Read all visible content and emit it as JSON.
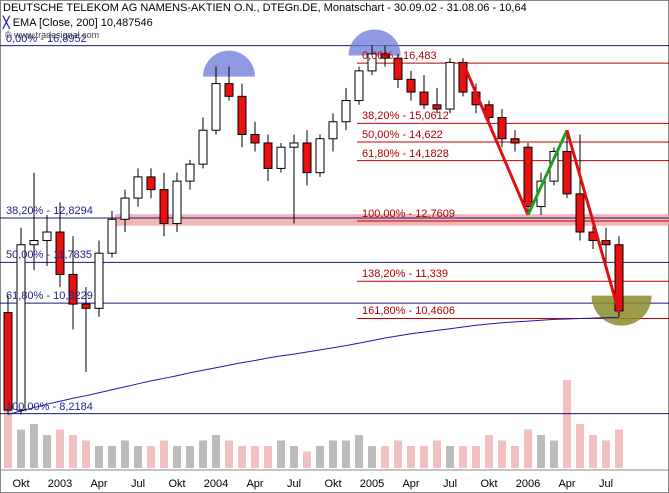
{
  "header": {
    "title": "DEUTSCHE TELEKOM AG NAMENS-AKTIEN O.N., DTEGn.DE, Monatschart - 30.09.02 - 31.08.06 - 10,64",
    "ema_text": "EMA [Close, 200] 10,487546",
    "watermark": "© www.tradesignal.com"
  },
  "left_levels": [
    {
      "text": "0,00% - 16,8952",
      "value": 16.8952
    },
    {
      "text": "38,20% - 12,8294",
      "value": 12.8294
    },
    {
      "text": "50,00% - 11,7835",
      "value": 11.7835
    },
    {
      "text": "61,80% - 10,8229",
      "value": 10.8229
    },
    {
      "text": "100,00% - 8,2184",
      "value": 8.2184
    }
  ],
  "right_levels": [
    {
      "text": "0,00% - 16,483",
      "value": 16.483
    },
    {
      "text": "38,20% - 15,0612",
      "value": 15.0612
    },
    {
      "text": "50,00% - 14,622",
      "value": 14.622
    },
    {
      "text": "61,80% - 14,1828",
      "value": 14.1828
    },
    {
      "text": "100,00% - 12,7609",
      "value": 12.7609
    },
    {
      "text": "138,20% - 11,339",
      "value": 11.339
    },
    {
      "text": "161,80% - 10,4606",
      "value": 10.4606
    }
  ],
  "x_labels": [
    {
      "text": "Okt",
      "index": 1
    },
    {
      "text": "2003",
      "index": 4
    },
    {
      "text": "Apr",
      "index": 7
    },
    {
      "text": "Jul",
      "index": 10
    },
    {
      "text": "Okt",
      "index": 13
    },
    {
      "text": "2004",
      "index": 16
    },
    {
      "text": "Apr",
      "index": 19
    },
    {
      "text": "Jul",
      "index": 22
    },
    {
      "text": "Okt",
      "index": 25
    },
    {
      "text": "2005",
      "index": 28
    },
    {
      "text": "Apr",
      "index": 31
    },
    {
      "text": "Jul",
      "index": 34
    },
    {
      "text": "Okt",
      "index": 37
    },
    {
      "text": "2006",
      "index": 40
    },
    {
      "text": "Apr",
      "index": 43
    },
    {
      "text": "Jul",
      "index": 46
    }
  ],
  "colors": {
    "up": "#ffffff",
    "down": "#e81010",
    "candle_outline": "#000000",
    "ema": "#1a1ab0",
    "fib_left": "#1a1a80",
    "fib_right": "#c00000",
    "support_band": "#f0a8a8",
    "vol_up": "#bcbcbc",
    "vol_down": "#f2c0c0",
    "trend_red": "#e01010",
    "trend_green": "#20a020",
    "top_marker": "#6a78d8",
    "bottom_marker": "#8a8c2a"
  },
  "chart_data": {
    "type": "candlestick",
    "title": "DEUTSCHE TELEKOM AG NAMENS-AKTIEN O.N., DTEGn.DE, Monatschart - 30.09.02 - 31.08.06 - 10,64",
    "xlabel": "",
    "ylabel": "",
    "ylim": [
      7.1,
      17.5
    ],
    "grid": false,
    "candles": [
      {
        "date": "2002-09",
        "open": 10.6,
        "high": 11.0,
        "low": 8.2,
        "close": 8.3
      },
      {
        "date": "2002-10",
        "open": 8.3,
        "high": 12.6,
        "low": 8.2,
        "close": 12.2
      },
      {
        "date": "2002-11",
        "open": 12.2,
        "high": 13.9,
        "low": 11.6,
        "close": 12.3
      },
      {
        "date": "2002-12",
        "open": 12.3,
        "high": 12.9,
        "low": 11.7,
        "close": 12.5
      },
      {
        "date": "2003-01",
        "open": 12.5,
        "high": 13.2,
        "low": 11.2,
        "close": 11.5
      },
      {
        "date": "2003-02",
        "open": 11.5,
        "high": 12.4,
        "low": 10.2,
        "close": 10.8
      },
      {
        "date": "2003-03",
        "open": 10.8,
        "high": 11.2,
        "low": 9.2,
        "close": 10.7
      },
      {
        "date": "2003-04",
        "open": 10.7,
        "high": 12.3,
        "low": 10.5,
        "close": 12.0
      },
      {
        "date": "2003-05",
        "open": 12.0,
        "high": 13.0,
        "low": 11.9,
        "close": 12.8
      },
      {
        "date": "2003-06",
        "open": 12.8,
        "high": 13.5,
        "low": 12.5,
        "close": 13.3
      },
      {
        "date": "2003-07",
        "open": 13.3,
        "high": 14.0,
        "low": 13.1,
        "close": 13.8
      },
      {
        "date": "2003-08",
        "open": 13.8,
        "high": 14.0,
        "low": 13.3,
        "close": 13.5
      },
      {
        "date": "2003-09",
        "open": 13.5,
        "high": 13.9,
        "low": 12.4,
        "close": 12.7
      },
      {
        "date": "2003-10",
        "open": 12.7,
        "high": 13.9,
        "low": 12.5,
        "close": 13.7
      },
      {
        "date": "2003-11",
        "open": 13.7,
        "high": 14.2,
        "low": 13.5,
        "close": 14.1
      },
      {
        "date": "2003-12",
        "open": 14.1,
        "high": 15.2,
        "low": 14.0,
        "close": 14.9
      },
      {
        "date": "2004-01",
        "open": 14.9,
        "high": 16.4,
        "low": 14.8,
        "close": 16.0
      },
      {
        "date": "2004-02",
        "open": 16.0,
        "high": 16.4,
        "low": 15.6,
        "close": 15.7
      },
      {
        "date": "2004-03",
        "open": 15.7,
        "high": 16.0,
        "low": 14.5,
        "close": 14.8
      },
      {
        "date": "2004-04",
        "open": 14.8,
        "high": 15.1,
        "low": 14.4,
        "close": 14.6
      },
      {
        "date": "2004-05",
        "open": 14.6,
        "high": 14.8,
        "low": 13.7,
        "close": 14.0
      },
      {
        "date": "2004-06",
        "open": 14.0,
        "high": 14.6,
        "low": 13.9,
        "close": 14.5
      },
      {
        "date": "2004-07",
        "open": 14.5,
        "high": 14.8,
        "low": 12.7,
        "close": 14.6
      },
      {
        "date": "2004-08",
        "open": 14.6,
        "high": 14.9,
        "low": 13.6,
        "close": 13.9
      },
      {
        "date": "2004-09",
        "open": 13.9,
        "high": 14.8,
        "low": 13.8,
        "close": 14.7
      },
      {
        "date": "2004-10",
        "open": 14.7,
        "high": 15.3,
        "low": 14.4,
        "close": 15.1
      },
      {
        "date": "2004-11",
        "open": 15.1,
        "high": 15.9,
        "low": 14.9,
        "close": 15.6
      },
      {
        "date": "2004-12",
        "open": 15.6,
        "high": 16.4,
        "low": 15.5,
        "close": 16.3
      },
      {
        "date": "2005-01",
        "open": 16.3,
        "high": 16.9,
        "low": 16.2,
        "close": 16.7
      },
      {
        "date": "2005-02",
        "open": 16.7,
        "high": 16.9,
        "low": 16.4,
        "close": 16.6
      },
      {
        "date": "2005-03",
        "open": 16.6,
        "high": 16.7,
        "low": 15.9,
        "close": 16.1
      },
      {
        "date": "2005-04",
        "open": 16.1,
        "high": 16.3,
        "low": 15.6,
        "close": 15.8
      },
      {
        "date": "2005-05",
        "open": 15.8,
        "high": 16.2,
        "low": 15.4,
        "close": 15.5
      },
      {
        "date": "2005-06",
        "open": 15.5,
        "high": 15.9,
        "low": 15.3,
        "close": 15.4
      },
      {
        "date": "2005-07",
        "open": 15.4,
        "high": 16.6,
        "low": 15.3,
        "close": 16.5
      },
      {
        "date": "2005-08",
        "open": 16.5,
        "high": 16.6,
        "low": 15.7,
        "close": 15.8
      },
      {
        "date": "2005-09",
        "open": 15.8,
        "high": 16.0,
        "low": 15.3,
        "close": 15.5
      },
      {
        "date": "2005-10",
        "open": 15.5,
        "high": 15.6,
        "low": 15.0,
        "close": 15.2
      },
      {
        "date": "2005-11",
        "open": 15.2,
        "high": 15.4,
        "low": 14.5,
        "close": 14.7
      },
      {
        "date": "2005-12",
        "open": 14.7,
        "high": 14.9,
        "low": 14.4,
        "close": 14.6
      },
      {
        "date": "2006-01",
        "open": 14.5,
        "high": 14.6,
        "low": 12.9,
        "close": 13.1
      },
      {
        "date": "2006-02",
        "open": 13.1,
        "high": 13.9,
        "low": 12.9,
        "close": 13.7
      },
      {
        "date": "2006-03",
        "open": 13.7,
        "high": 14.5,
        "low": 13.6,
        "close": 14.4
      },
      {
        "date": "2006-04",
        "open": 14.4,
        "high": 14.9,
        "low": 13.3,
        "close": 13.4
      },
      {
        "date": "2006-05",
        "open": 13.4,
        "high": 14.8,
        "low": 12.3,
        "close": 12.5
      },
      {
        "date": "2006-06",
        "open": 12.5,
        "high": 12.8,
        "low": 12.1,
        "close": 12.3
      },
      {
        "date": "2006-07",
        "open": 12.3,
        "high": 12.6,
        "low": 11.7,
        "close": 12.2
      },
      {
        "date": "2006-08",
        "open": 12.2,
        "high": 12.4,
        "low": 10.5,
        "close": 10.64
      }
    ],
    "ema": [
      8.2,
      8.28,
      8.36,
      8.44,
      8.51,
      8.58,
      8.64,
      8.71,
      8.78,
      8.85,
      8.92,
      8.99,
      9.05,
      9.11,
      9.18,
      9.24,
      9.3,
      9.36,
      9.42,
      9.47,
      9.53,
      9.58,
      9.62,
      9.67,
      9.72,
      9.77,
      9.82,
      9.88,
      9.94,
      10.0,
      10.05,
      10.1,
      10.14,
      10.18,
      10.22,
      10.26,
      10.3,
      10.33,
      10.36,
      10.38,
      10.4,
      10.42,
      10.44,
      10.45,
      10.46,
      10.47,
      10.48,
      10.49
    ],
    "volume": [
      90,
      35,
      40,
      30,
      35,
      30,
      25,
      20,
      20,
      25,
      20,
      20,
      25,
      20,
      20,
      25,
      30,
      25,
      20,
      20,
      20,
      25,
      20,
      15,
      20,
      25,
      25,
      30,
      20,
      20,
      25,
      20,
      20,
      25,
      20,
      20,
      20,
      30,
      25,
      20,
      35,
      30,
      25,
      80,
      40,
      30,
      25,
      35
    ],
    "support_band": [
      12.65,
      12.92
    ]
  }
}
